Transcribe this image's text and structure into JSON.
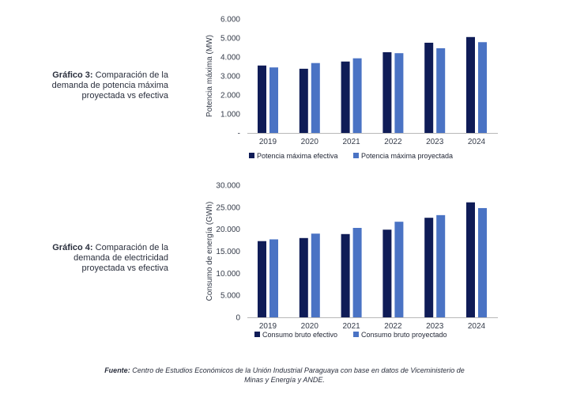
{
  "charts": [
    {
      "caption_label": "Gráfico 3:",
      "caption_text": "Comparación de la demanda de potencia máxima proyectada vs efectiva"
    },
    {
      "caption_label": "Gráfico 4:",
      "caption_text": "Comparación de la demanda de electricidad proyectada vs efectiva"
    }
  ],
  "source": {
    "label": "Fuente:",
    "text": "Centro de Estudios Económicos de la Unión Industrial Paraguaya con base en datos de Viceministerio de Minas y Energía y ANDE."
  },
  "colors": {
    "dark": "#0f1c57",
    "light": "#4a73c4",
    "axis": "#b8b8b8"
  },
  "chart_data": [
    {
      "type": "bar",
      "categories": [
        "2019",
        "2020",
        "2021",
        "2022",
        "2023",
        "2024"
      ],
      "series": [
        {
          "name": "Potencia máxima efectiva",
          "values": [
            3550,
            3380,
            3760,
            4250,
            4750,
            5050
          ]
        },
        {
          "name": "Potencia máxima proyectada",
          "values": [
            3450,
            3680,
            3930,
            4200,
            4460,
            4780
          ]
        }
      ],
      "ylabel": "Potencia máxima (MW)",
      "ylim": [
        0,
        6000
      ],
      "yticks": [
        0,
        1000,
        2000,
        3000,
        4000,
        5000,
        6000
      ],
      "ytick_labels": [
        "-",
        "1.000",
        "2.000",
        "3.000",
        "4.000",
        "5.000",
        "6.000"
      ],
      "legend_position": "bottom"
    },
    {
      "type": "bar",
      "categories": [
        "2019",
        "2020",
        "2021",
        "2022",
        "2023",
        "2024"
      ],
      "series": [
        {
          "name": "Consumo bruto efectivo",
          "values": [
            17300,
            18000,
            18900,
            19900,
            22600,
            26100
          ]
        },
        {
          "name": "Consumo bruto proyectado",
          "values": [
            17700,
            19000,
            20300,
            21700,
            23200,
            24800
          ]
        }
      ],
      "ylabel": "Consumo de energía (GWh)",
      "ylim": [
        0,
        30000
      ],
      "yticks": [
        0,
        5000,
        10000,
        15000,
        20000,
        25000,
        30000
      ],
      "ytick_labels": [
        "0",
        "5.000",
        "10.000",
        "15.000",
        "20.000",
        "25.000",
        "30.000"
      ],
      "legend_position": "bottom"
    }
  ]
}
